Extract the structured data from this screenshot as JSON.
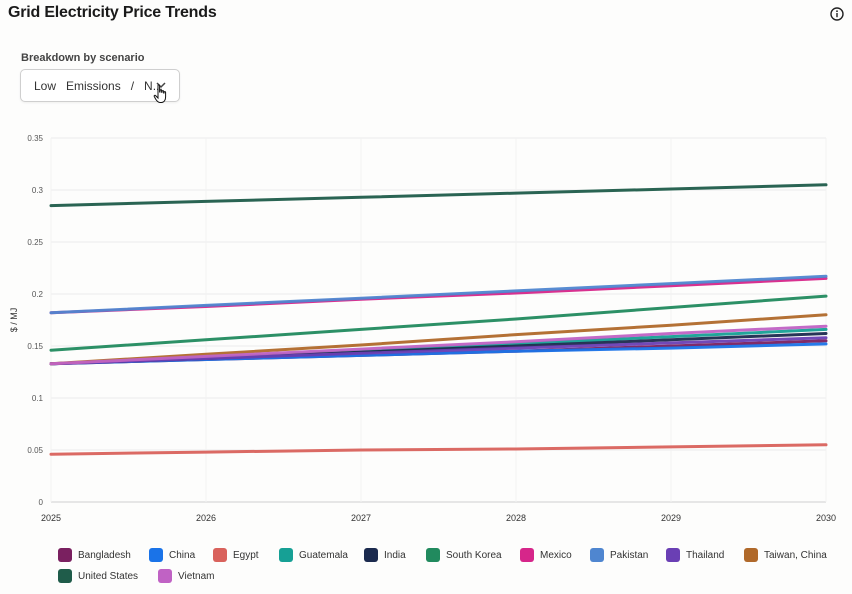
{
  "header": {
    "title": "Grid Electricity Price Trends"
  },
  "controls": {
    "breakdown_label": "Breakdown by scenario",
    "scenario_value": "Low   Emissions   /   N..."
  },
  "icons": {
    "info": "info-icon",
    "chevron": "chevron-down-icon",
    "cursor": "hand-pointer-cursor-icon"
  },
  "chart_data": {
    "type": "line",
    "x": [
      2025,
      2026,
      2027,
      2028,
      2029,
      2030
    ],
    "ylabel": "$ / MJ",
    "xlabel": "",
    "ylim": [
      0,
      0.35
    ],
    "yticks": [
      0,
      0.05,
      0.1,
      0.15,
      0.2,
      0.25,
      0.3,
      0.35
    ],
    "ytick_labels": [
      "0",
      "0.05",
      "0.1",
      "0.15",
      "0.2",
      "0.25",
      "0.3",
      "0.35"
    ],
    "xtick_labels": [
      "2025",
      "2026",
      "2027",
      "2028",
      "2029",
      "2030"
    ],
    "grid": true,
    "legend_position": "bottom",
    "series": [
      {
        "name": "Bangladesh",
        "color": "#7a2060",
        "values": [
          0.133,
          0.137,
          0.141,
          0.145,
          0.15,
          0.155
        ]
      },
      {
        "name": "China",
        "color": "#1a73e8",
        "values": [
          0.133,
          0.137,
          0.141,
          0.145,
          0.148,
          0.152
        ]
      },
      {
        "name": "Egypt",
        "color": "#d9625c",
        "values": [
          0.046,
          0.048,
          0.05,
          0.051,
          0.053,
          0.055
        ]
      },
      {
        "name": "Guatemala",
        "color": "#16a095",
        "values": [
          0.133,
          0.139,
          0.145,
          0.152,
          0.159,
          0.166
        ]
      },
      {
        "name": "India",
        "color": "#1b2a4e",
        "values": [
          0.133,
          0.138,
          0.144,
          0.15,
          0.156,
          0.162
        ]
      },
      {
        "name": "South Korea",
        "color": "#218a5e",
        "values": [
          0.146,
          0.156,
          0.166,
          0.176,
          0.187,
          0.198
        ]
      },
      {
        "name": "Mexico",
        "color": "#d6268a",
        "values": [
          0.182,
          0.188,
          0.195,
          0.201,
          0.208,
          0.215
        ]
      },
      {
        "name": "Pakistan",
        "color": "#4f86d0",
        "values": [
          0.182,
          0.189,
          0.196,
          0.203,
          0.21,
          0.217
        ]
      },
      {
        "name": "Thailand",
        "color": "#6a3fb4",
        "values": [
          0.133,
          0.138,
          0.143,
          0.148,
          0.153,
          0.158
        ]
      },
      {
        "name": "Taiwan, China",
        "color": "#b0692a",
        "values": [
          0.133,
          0.142,
          0.151,
          0.161,
          0.17,
          0.18
        ]
      },
      {
        "name": "United States",
        "color": "#1f5c4a",
        "values": [
          0.285,
          0.289,
          0.293,
          0.297,
          0.301,
          0.305
        ]
      },
      {
        "name": "Vietnam",
        "color": "#c062c4",
        "values": [
          0.133,
          0.14,
          0.147,
          0.154,
          0.162,
          0.169
        ]
      }
    ]
  }
}
